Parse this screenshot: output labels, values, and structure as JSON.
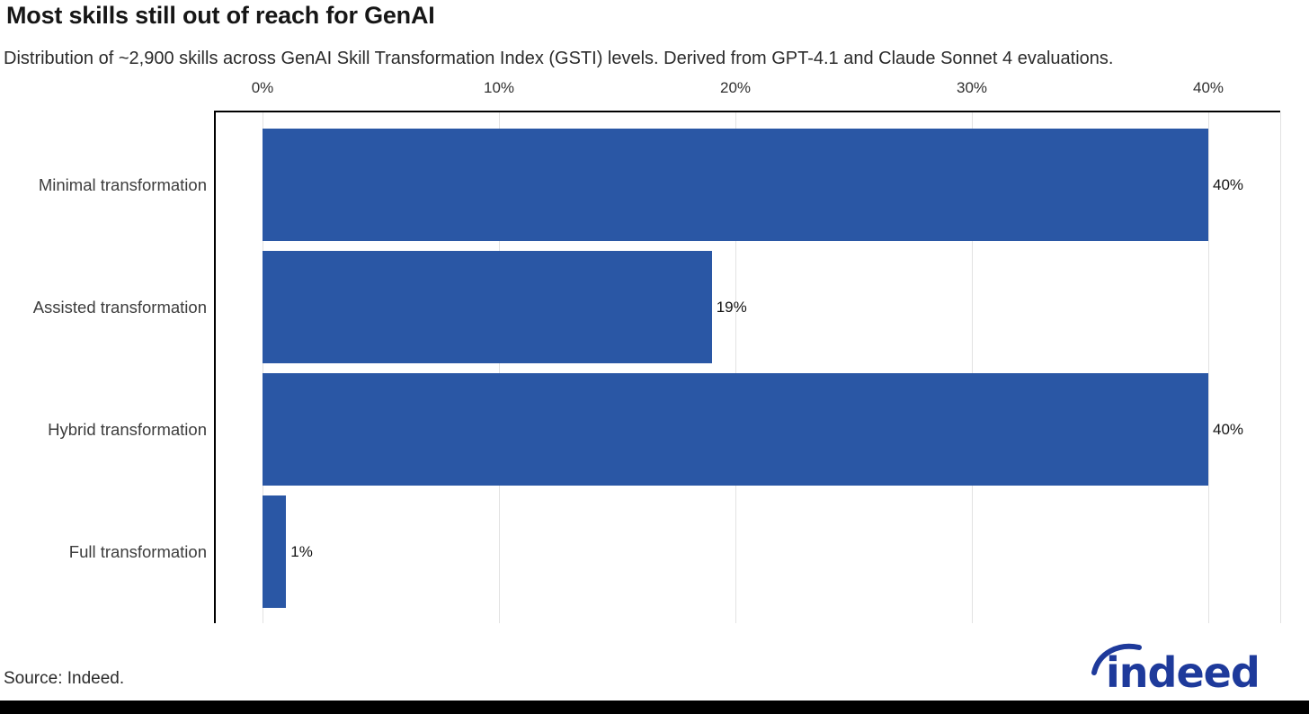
{
  "header": {
    "title": "Most skills still out of reach for GenAI",
    "subtitle": "Distribution of ~2,900 skills across GenAI Skill Transformation Index (GSTI) levels. Derived from GPT-4.1 and Claude Sonnet 4 evaluations."
  },
  "chart_data": {
    "type": "bar",
    "orientation": "horizontal",
    "title": "Most skills still out of reach for GenAI",
    "categories": [
      "Minimal transformation",
      "Assisted transformation",
      "Hybrid transformation",
      "Full transformation"
    ],
    "values": [
      40,
      19,
      40,
      1
    ],
    "value_labels": [
      "40%",
      "19%",
      "40%",
      "1%"
    ],
    "x_ticks": [
      "0%",
      "10%",
      "20%",
      "30%",
      "40%"
    ],
    "x_tick_values": [
      0,
      10,
      20,
      30,
      40
    ],
    "xlim": [
      0,
      43
    ],
    "unit": "%",
    "grid": true,
    "legend": false,
    "axis_position": "top",
    "bar_color": "#2a57a5",
    "gridline_color": "#e2e2e2",
    "axis_color": "#000000"
  },
  "footer": {
    "source": "Source: Indeed.",
    "logo_text": "indeed",
    "logo_color": "#1e3a9b"
  }
}
